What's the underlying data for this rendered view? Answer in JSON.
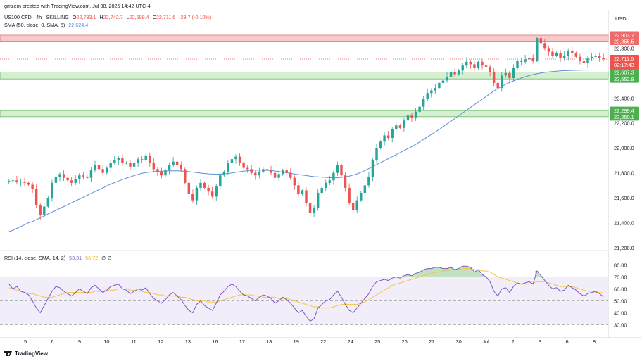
{
  "header": {
    "credit": "gmzern created with TradingView.com, Jul 08, 2025 14:42 UTC-4",
    "symbol": "US100 CFD · 4h · SKILLING",
    "ohlc": {
      "o_label": "O",
      "o": "22,733.1",
      "h_label": "H",
      "h": "22,742.7",
      "l_label": "L",
      "l": "22,699.4",
      "c_label": "C",
      "c": "22,711.6",
      "chg": "-23.7 (-0.10%)"
    },
    "sma_label": "SMA (50, close, 0, SMA, 5)",
    "sma_value": "22,624.4",
    "rsi_label": "RSI (14, close, SMA, 14, 2)",
    "rsi_value": "53.31",
    "rsi_ma_value": "56.72",
    "rsi_extra": "∅ ∅"
  },
  "currency": "USD",
  "brand": "TradingView",
  "colors": {
    "up": "#26a69a",
    "down": "#ef5350",
    "sma": "#5b8ed6",
    "rsi": "#7e57c2",
    "rsi_ma": "#f5c542",
    "red_zone": "#f8c9c9",
    "green_zone": "#d7efd1",
    "green_zone_border": "#5fb85f"
  },
  "chart_data": {
    "type": "line",
    "price_axis": {
      "ticks": [
        21200,
        21400,
        21600,
        21800,
        22000,
        22200,
        22400,
        22600,
        22800
      ],
      "ylim": [
        21200,
        22960
      ]
    },
    "price_tick_labels": [
      "21,200.0",
      "21,400.0",
      "21,600.0",
      "21,800.0",
      "22,000.0",
      "22,200.0",
      "22,400.0",
      "22,600.0",
      "22,800.0"
    ],
    "x_tick_labels": [
      "5",
      "6",
      "9",
      "10",
      "11",
      "12",
      "13",
      "16",
      "17",
      "18",
      "19",
      "22",
      "24",
      "25",
      "26",
      "27",
      "30",
      "Jul",
      "2",
      "3",
      "6",
      "8"
    ],
    "zones": [
      {
        "kind": "resistance",
        "top": 22903.7,
        "bottom": 22855.5,
        "top_label": "22,903.7",
        "bottom_label": "22,855.5"
      },
      {
        "kind": "support",
        "top": 22607.3,
        "bottom": 22552.8,
        "top_label": "22,607.3",
        "bottom_label": "22,552.8"
      },
      {
        "kind": "support",
        "top": 22299.4,
        "bottom": 22250.1,
        "top_label": "22,299.4",
        "bottom_label": "22,250.1"
      }
    ],
    "last_price": {
      "value": 22711.6,
      "label": "22,711.6",
      "countdown": "02:17:43"
    },
    "closes": [
      21735,
      21740,
      21725,
      21730,
      21720,
      21705,
      21670,
      21540,
      21460,
      21530,
      21600,
      21720,
      21770,
      21790,
      21760,
      21740,
      21720,
      21750,
      21780,
      21770,
      21760,
      21820,
      21860,
      21830,
      21800,
      21840,
      21880,
      21900,
      21920,
      21880,
      21880,
      21850,
      21880,
      21910,
      21900,
      21940,
      21880,
      21830,
      21810,
      21780,
      21820,
      21860,
      21890,
      21860,
      21830,
      21720,
      21630,
      21580,
      21680,
      21720,
      21680,
      21650,
      21610,
      21690,
      21780,
      21810,
      21880,
      21910,
      21930,
      21880,
      21840,
      21830,
      21800,
      21780,
      21810,
      21830,
      21820,
      21800,
      21760,
      21790,
      21820,
      21800,
      21760,
      21700,
      21630,
      21660,
      21560,
      21480,
      21520,
      21640,
      21680,
      21720,
      21740,
      21800,
      21860,
      21780,
      21680,
      21560,
      21500,
      21580,
      21640,
      21700,
      21770,
      21900,
      22000,
      22050,
      22100,
      22080,
      22150,
      22180,
      22160,
      22220,
      22260,
      22240,
      22290,
      22330,
      22390,
      22440,
      22460,
      22480,
      22520,
      22540,
      22570,
      22610,
      22590,
      22620,
      22660,
      22690,
      22670,
      22640,
      22690,
      22660,
      22650,
      22610,
      22520,
      22480,
      22580,
      22600,
      22560,
      22640,
      22700,
      22690,
      22710,
      22720,
      22700,
      22880,
      22840,
      22800,
      22770,
      22740,
      22760,
      22720,
      22740,
      22780,
      22760,
      22730,
      22700,
      22680,
      22720,
      22730,
      22740,
      22720,
      22711.6
    ],
    "sma50": [
      21330,
      21340,
      21355,
      21370,
      21385,
      21400,
      21410,
      21425,
      21440,
      21455,
      21470,
      21485,
      21500,
      21515,
      21530,
      21545,
      21560,
      21575,
      21590,
      21605,
      21620,
      21635,
      21650,
      21665,
      21680,
      21695,
      21710,
      21722,
      21734,
      21746,
      21758,
      21768,
      21778,
      21788,
      21796,
      21802,
      21806,
      21810,
      21812,
      21814,
      21815,
      21816,
      21816,
      21816,
      21815,
      21813,
      21810,
      21806,
      21802,
      21798,
      21795,
      21792,
      21790,
      21789,
      21790,
      21792,
      21795,
      21799,
      21804,
      21809,
      21813,
      21817,
      21820,
      21822,
      21823,
      21822,
      21820,
      21818,
      21815,
      21811,
      21806,
      21801,
      21796,
      21791,
      21786,
      21782,
      21778,
      21774,
      21770,
      21768,
      21766,
      21764,
      21762,
      21760,
      21761,
      21764,
      21768,
      21774,
      21782,
      21792,
      21804,
      21818,
      21834,
      21850,
      21866,
      21882,
      21898,
      21914,
      21930,
      21946,
      21962,
      21978,
      21994,
      22010,
      22028,
      22048,
      22068,
      22088,
      22108,
      22128,
      22148,
      22170,
      22192,
      22214,
      22236,
      22258,
      22280,
      22302,
      22324,
      22346,
      22368,
      22390,
      22412,
      22434,
      22456,
      22476,
      22494,
      22510,
      22524,
      22537,
      22549,
      22560,
      22570,
      22579,
      22587,
      22594,
      22600,
      22605,
      22609,
      22612,
      22615,
      22617,
      22619,
      22620,
      22621,
      22622,
      22623,
      22624,
      22624,
      22624.2,
      22624.3,
      22624.4
    ],
    "rsi": {
      "ticks": [
        30,
        40,
        50,
        60,
        70,
        80
      ],
      "tick_labels": [
        "30.00",
        "40.00",
        "50.00",
        "60.00",
        "70.00",
        "80.00"
      ],
      "overbought": 70,
      "oversold": 30,
      "mid": 50,
      "values": [
        64,
        60,
        62,
        58,
        57,
        55,
        50,
        44,
        40,
        46,
        52,
        58,
        62,
        61,
        58,
        56,
        54,
        57,
        60,
        58,
        56,
        61,
        63,
        60,
        57,
        59,
        62,
        63,
        64,
        60,
        59,
        56,
        58,
        60,
        59,
        61,
        56,
        52,
        50,
        48,
        51,
        55,
        57,
        54,
        51,
        46,
        42,
        40,
        47,
        50,
        46,
        44,
        42,
        48,
        55,
        58,
        62,
        64,
        62,
        58,
        55,
        54,
        52,
        50,
        53,
        55,
        54,
        52,
        48,
        50,
        53,
        51,
        48,
        44,
        40,
        42,
        37,
        33,
        35,
        44,
        47,
        50,
        51,
        55,
        58,
        53,
        47,
        42,
        40,
        44,
        48,
        52,
        56,
        62,
        66,
        67,
        68,
        67,
        69,
        70,
        69,
        71,
        72,
        71,
        73,
        74,
        76,
        77,
        77,
        78,
        78,
        77,
        77,
        78,
        76,
        77,
        79,
        79,
        78,
        74,
        76,
        72,
        70,
        66,
        58,
        54,
        60,
        61,
        57,
        62,
        65,
        64,
        65,
        66,
        64,
        75,
        71,
        67,
        63,
        60,
        61,
        58,
        59,
        63,
        61,
        59,
        56,
        54,
        56,
        57,
        58,
        56,
        53.31
      ],
      "ma": [
        61,
        60,
        59,
        58,
        57,
        56,
        56,
        55,
        54,
        53,
        53,
        53,
        54,
        55,
        56,
        57,
        57,
        57,
        57,
        57,
        57,
        57,
        58,
        58,
        58,
        59,
        59,
        59,
        60,
        60,
        60,
        59,
        59,
        58,
        58,
        57,
        57,
        56,
        55,
        55,
        54,
        54,
        54,
        54,
        53,
        53,
        52,
        51,
        50,
        50,
        50,
        49,
        49,
        49,
        50,
        51,
        52,
        53,
        54,
        55,
        55,
        55,
        55,
        54,
        54,
        53,
        53,
        53,
        53,
        52,
        52,
        52,
        51,
        50,
        49,
        48,
        47,
        46,
        45,
        45,
        44,
        44,
        44,
        45,
        46,
        47,
        47,
        47,
        47,
        47,
        48,
        49,
        51,
        53,
        55,
        57,
        59,
        61,
        63,
        64,
        65,
        66,
        67,
        68,
        69,
        70,
        71,
        72,
        73,
        74,
        74,
        75,
        75,
        76,
        76,
        76,
        77,
        77,
        77,
        76,
        76,
        75,
        75,
        74,
        72,
        70,
        69,
        68,
        67,
        66,
        65,
        64,
        64,
        64,
        65,
        66,
        66,
        66,
        65,
        64,
        63,
        62,
        62,
        62,
        62,
        61,
        60,
        59,
        58,
        58,
        57,
        57,
        56.72
      ]
    }
  }
}
